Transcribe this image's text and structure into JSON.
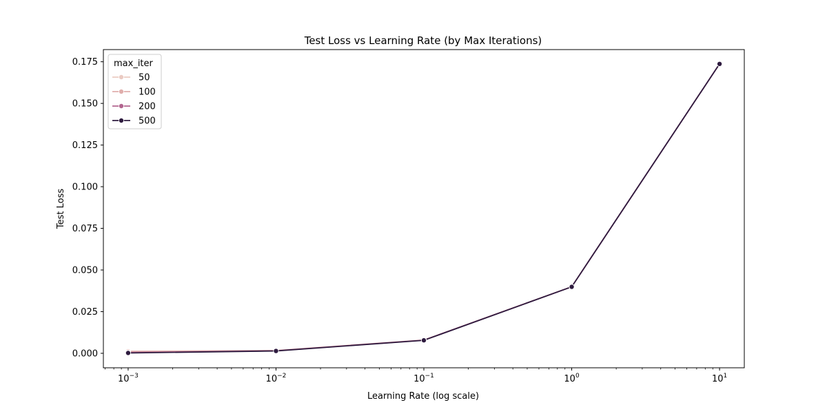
{
  "chart_data": {
    "type": "line",
    "title": "Test Loss vs Learning Rate (by Max Iterations)",
    "xlabel": "Learning Rate (log scale)",
    "ylabel": "Test Loss",
    "xscale": "log",
    "xlim": [
      0.00068,
      14.7
    ],
    "ylim": [
      -0.0087,
      0.1823
    ],
    "grid": false,
    "x": [
      0.001,
      0.01,
      0.1,
      1,
      10
    ],
    "x_ticks": [
      0.001,
      0.01,
      0.1,
      1,
      10
    ],
    "x_tick_labels": [
      {
        "base": "10",
        "exp": "−3"
      },
      {
        "base": "10",
        "exp": "−2"
      },
      {
        "base": "10",
        "exp": "−1"
      },
      {
        "base": "10",
        "exp": "0"
      },
      {
        "base": "10",
        "exp": "1"
      }
    ],
    "y_ticks": [
      0.0,
      0.025,
      0.05,
      0.075,
      0.1,
      0.125,
      0.15,
      0.175
    ],
    "y_tick_labels": [
      "0.000",
      "0.025",
      "0.050",
      "0.075",
      "0.100",
      "0.125",
      "0.150",
      "0.175"
    ],
    "legend": {
      "title": "max_iter",
      "placement": "upper-left"
    },
    "series": [
      {
        "name": "50",
        "color": "#ebcbc3",
        "values": [
          0.0012,
          0.0017,
          0.008,
          0.04,
          0.1737
        ]
      },
      {
        "name": "100",
        "color": "#e0aeac",
        "values": [
          0.0011,
          0.0016,
          0.0079,
          0.0399,
          0.1737
        ]
      },
      {
        "name": "200",
        "color": "#b2658f",
        "values": [
          0.0005,
          0.0015,
          0.0079,
          0.0399,
          0.1737
        ]
      },
      {
        "name": "500",
        "color": "#2e1b3f",
        "values": [
          0.0002,
          0.0014,
          0.0078,
          0.0399,
          0.1737
        ]
      }
    ]
  }
}
